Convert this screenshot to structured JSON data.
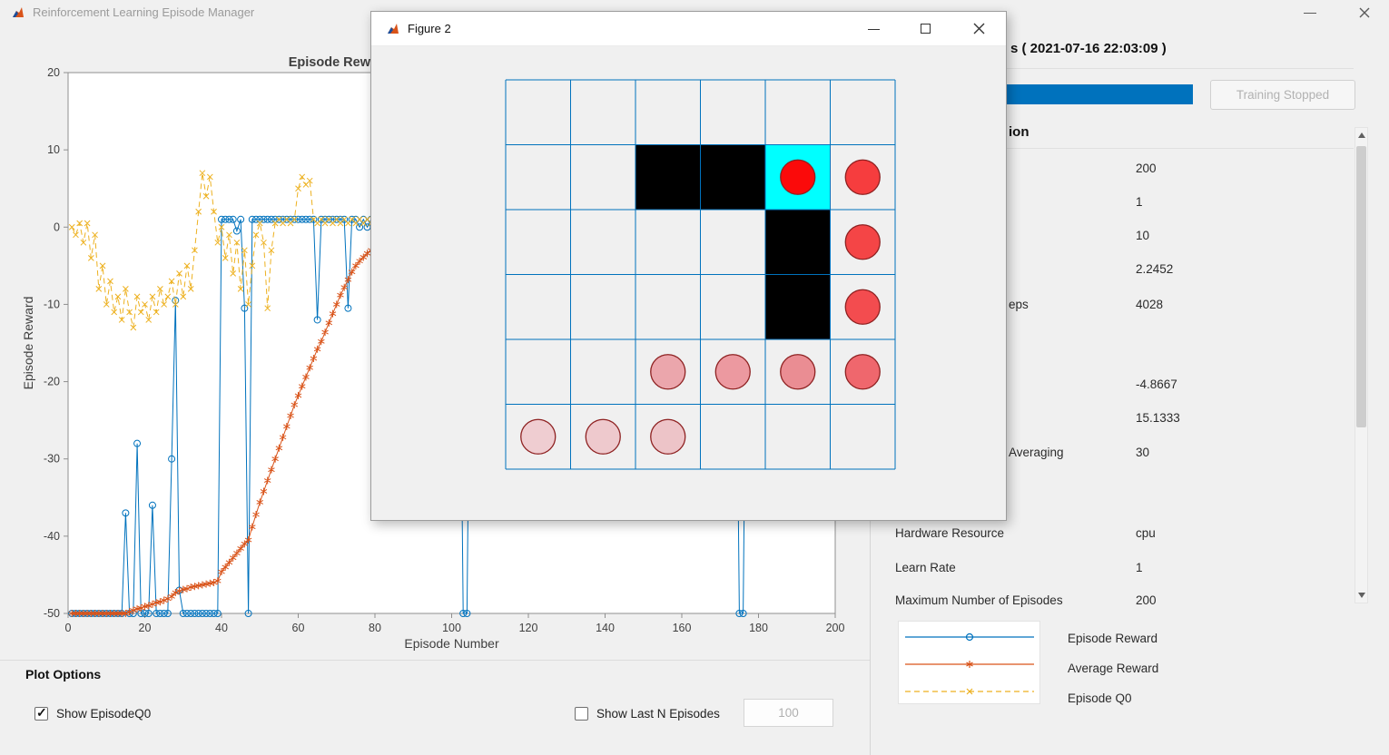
{
  "window": {
    "title": "Reinforcement Learning Episode Manager"
  },
  "plot": {
    "title_visible": "Episode Rew"
  },
  "chart_data": {
    "type": "line",
    "title": "Episode Rew",
    "xlabel": "Episode Number",
    "ylabel": "Episode Reward",
    "xlim": [
      0,
      200
    ],
    "ylim": [
      -50,
      20
    ],
    "xticks": [
      0,
      20,
      40,
      60,
      80,
      100,
      120,
      140,
      160,
      180,
      200
    ],
    "yticks": [
      -50,
      -40,
      -30,
      -20,
      -10,
      0,
      10,
      20
    ],
    "grid": false,
    "legend_position": "bottom-right-panel",
    "series": [
      {
        "name": "Episode Reward",
        "color": "#0072BD",
        "marker": "circle",
        "dash": "",
        "points": [
          [
            1,
            -50
          ],
          [
            2,
            -50
          ],
          [
            3,
            -50
          ],
          [
            4,
            -50
          ],
          [
            5,
            -50
          ],
          [
            6,
            -50
          ],
          [
            7,
            -50
          ],
          [
            8,
            -50
          ],
          [
            9,
            -50
          ],
          [
            10,
            -50
          ],
          [
            11,
            -50
          ],
          [
            12,
            -50
          ],
          [
            13,
            -50
          ],
          [
            14,
            -50
          ],
          [
            15,
            -37
          ],
          [
            16,
            -50
          ],
          [
            17,
            -50
          ],
          [
            18,
            -28
          ],
          [
            19,
            -50
          ],
          [
            20,
            -50
          ],
          [
            21,
            -50
          ],
          [
            22,
            -36
          ],
          [
            23,
            -50
          ],
          [
            24,
            -50
          ],
          [
            25,
            -50
          ],
          [
            26,
            -50
          ],
          [
            27,
            -30
          ],
          [
            28,
            -9.5
          ],
          [
            29,
            -47
          ],
          [
            30,
            -50
          ],
          [
            31,
            -50
          ],
          [
            32,
            -50
          ],
          [
            33,
            -50
          ],
          [
            34,
            -50
          ],
          [
            35,
            -50
          ],
          [
            36,
            -50
          ],
          [
            37,
            -50
          ],
          [
            38,
            -50
          ],
          [
            39,
            -50
          ],
          [
            40,
            1
          ],
          [
            41,
            1
          ],
          [
            42,
            1
          ],
          [
            43,
            1
          ],
          [
            44,
            -0.5
          ],
          [
            45,
            1
          ],
          [
            46,
            -10.5
          ],
          [
            47,
            -50
          ],
          [
            48,
            1
          ],
          [
            49,
            1
          ],
          [
            50,
            1
          ],
          [
            51,
            1
          ],
          [
            52,
            1
          ],
          [
            53,
            1
          ],
          [
            54,
            1
          ],
          [
            55,
            1
          ],
          [
            56,
            1
          ],
          [
            57,
            1
          ],
          [
            58,
            1
          ],
          [
            59,
            1
          ],
          [
            60,
            1
          ],
          [
            61,
            1
          ],
          [
            62,
            1
          ],
          [
            63,
            1
          ],
          [
            64,
            1
          ],
          [
            65,
            -12
          ],
          [
            66,
            1
          ],
          [
            67,
            1
          ],
          [
            68,
            1
          ],
          [
            69,
            1
          ],
          [
            70,
            1
          ],
          [
            71,
            1
          ],
          [
            72,
            1
          ],
          [
            73,
            -10.5
          ],
          [
            74,
            1
          ],
          [
            75,
            1
          ],
          [
            76,
            0
          ],
          [
            77,
            1
          ],
          [
            78,
            0
          ],
          [
            79,
            1
          ],
          [
            80,
            0
          ],
          [
            81,
            1
          ],
          [
            102,
            1
          ],
          [
            103,
            -50
          ],
          [
            104,
            -50
          ],
          [
            105,
            1
          ],
          [
            174,
            1
          ],
          [
            175,
            -50
          ],
          [
            176,
            -50
          ],
          [
            177,
            1
          ],
          [
            200,
            1
          ]
        ]
      },
      {
        "name": "Average Reward",
        "color": "#D95319",
        "marker": "asterisk",
        "dash": "",
        "points": [
          [
            1,
            -50
          ],
          [
            2,
            -50
          ],
          [
            3,
            -50
          ],
          [
            4,
            -50
          ],
          [
            5,
            -50
          ],
          [
            6,
            -50
          ],
          [
            7,
            -50
          ],
          [
            8,
            -50
          ],
          [
            9,
            -50
          ],
          [
            10,
            -50
          ],
          [
            11,
            -50
          ],
          [
            12,
            -50
          ],
          [
            13,
            -50
          ],
          [
            14,
            -50
          ],
          [
            15,
            -50
          ],
          [
            16,
            -49.8
          ],
          [
            17,
            -49.6
          ],
          [
            18,
            -49.4
          ],
          [
            19,
            -49.3
          ],
          [
            20,
            -49.1
          ],
          [
            21,
            -49
          ],
          [
            22,
            -48.8
          ],
          [
            23,
            -48.6
          ],
          [
            24,
            -48.5
          ],
          [
            25,
            -48.3
          ],
          [
            26,
            -48.1
          ],
          [
            27,
            -47.8
          ],
          [
            28,
            -47.3
          ],
          [
            29,
            -47.1
          ],
          [
            30,
            -46.9
          ],
          [
            31,
            -46.8
          ],
          [
            32,
            -46.6
          ],
          [
            33,
            -46.5
          ],
          [
            34,
            -46.4
          ],
          [
            35,
            -46.3
          ],
          [
            36,
            -46.2
          ],
          [
            37,
            -46.1
          ],
          [
            38,
            -46
          ],
          [
            39,
            -45.8
          ],
          [
            40,
            -44.6
          ],
          [
            41,
            -44
          ],
          [
            42,
            -43.4
          ],
          [
            43,
            -42.8
          ],
          [
            44,
            -42.2
          ],
          [
            45,
            -41.6
          ],
          [
            46,
            -41
          ],
          [
            47,
            -40.5
          ],
          [
            48,
            -38.8
          ],
          [
            49,
            -37.2
          ],
          [
            50,
            -35.6
          ],
          [
            51,
            -34.2
          ],
          [
            52,
            -32.8
          ],
          [
            53,
            -31.4
          ],
          [
            54,
            -30
          ],
          [
            55,
            -28.6
          ],
          [
            56,
            -27.2
          ],
          [
            57,
            -25.8
          ],
          [
            58,
            -24.4
          ],
          [
            59,
            -23
          ],
          [
            60,
            -21.8
          ],
          [
            61,
            -20.6
          ],
          [
            62,
            -19.4
          ],
          [
            63,
            -18.2
          ],
          [
            64,
            -17
          ],
          [
            65,
            -15.8
          ],
          [
            66,
            -14.8
          ],
          [
            67,
            -13.6
          ],
          [
            68,
            -12.4
          ],
          [
            69,
            -11.2
          ],
          [
            70,
            -10
          ],
          [
            71,
            -8.8
          ],
          [
            72,
            -7.8
          ],
          [
            73,
            -6.8
          ],
          [
            74,
            -5.8
          ],
          [
            75,
            -5
          ],
          [
            76,
            -4.4
          ],
          [
            77,
            -3.9
          ],
          [
            78,
            -3.4
          ],
          [
            79,
            -3
          ],
          [
            80,
            -2.6
          ]
        ]
      },
      {
        "name": "Episode Q0",
        "color": "#EDB120",
        "marker": "x",
        "dash": "6,4",
        "points": [
          [
            1,
            0
          ],
          [
            2,
            -1
          ],
          [
            3,
            0.5
          ],
          [
            4,
            -2
          ],
          [
            5,
            0.5
          ],
          [
            6,
            -4
          ],
          [
            7,
            -1
          ],
          [
            8,
            -8
          ],
          [
            9,
            -5
          ],
          [
            10,
            -10
          ],
          [
            11,
            -7
          ],
          [
            12,
            -11
          ],
          [
            13,
            -9
          ],
          [
            14,
            -12
          ],
          [
            15,
            -8
          ],
          [
            16,
            -11
          ],
          [
            17,
            -13
          ],
          [
            18,
            -9
          ],
          [
            19,
            -11
          ],
          [
            20,
            -10
          ],
          [
            21,
            -12
          ],
          [
            22,
            -9
          ],
          [
            23,
            -11
          ],
          [
            24,
            -8
          ],
          [
            25,
            -10
          ],
          [
            26,
            -9
          ],
          [
            27,
            -7
          ],
          [
            28,
            -10
          ],
          [
            29,
            -6
          ],
          [
            30,
            -9
          ],
          [
            31,
            -5
          ],
          [
            32,
            -8
          ],
          [
            33,
            -3
          ],
          [
            34,
            2
          ],
          [
            35,
            7
          ],
          [
            36,
            4
          ],
          [
            37,
            6.5
          ],
          [
            38,
            2
          ],
          [
            39,
            -2
          ],
          [
            40,
            0
          ],
          [
            41,
            -4
          ],
          [
            42,
            -1
          ],
          [
            43,
            -6
          ],
          [
            44,
            -2
          ],
          [
            45,
            -8
          ],
          [
            46,
            -3
          ],
          [
            47,
            -10
          ],
          [
            48,
            -5
          ],
          [
            49,
            -1
          ],
          [
            50,
            0.5
          ],
          [
            51,
            -2
          ],
          [
            52,
            -10.5
          ],
          [
            53,
            -3
          ],
          [
            54,
            0.5
          ],
          [
            55,
            1
          ],
          [
            56,
            0.5
          ],
          [
            57,
            1
          ],
          [
            58,
            0.5
          ],
          [
            59,
            1
          ],
          [
            60,
            5
          ],
          [
            61,
            6.5
          ],
          [
            62,
            5.5
          ],
          [
            63,
            6
          ],
          [
            64,
            1
          ],
          [
            65,
            0.5
          ],
          [
            66,
            1
          ],
          [
            67,
            0.5
          ],
          [
            68,
            1
          ],
          [
            69,
            0.5
          ],
          [
            70,
            1
          ],
          [
            71,
            0.5
          ],
          [
            72,
            1
          ],
          [
            73,
            0.5
          ],
          [
            74,
            1
          ],
          [
            75,
            0.5
          ],
          [
            76,
            1
          ],
          [
            77,
            0.5
          ],
          [
            78,
            1
          ],
          [
            79,
            0.5
          ],
          [
            80,
            1
          ]
        ]
      }
    ]
  },
  "plot_options": {
    "heading": "Plot Options",
    "show_q0_label": "Show EpisodeQ0",
    "show_q0_checked": true,
    "show_last_label": "Show Last N Episodes",
    "show_last_checked": false,
    "last_n_value": "100"
  },
  "right_panel": {
    "header_visible": "s ( 2021-07-16 22:03:09 )",
    "stop_button": "Training Stopped",
    "section_visible": "ion",
    "progress_color": "#0072BD",
    "rows": [
      {
        "label": "",
        "value": "200"
      },
      {
        "label": "",
        "value": "1"
      },
      {
        "label": "",
        "value": "10"
      },
      {
        "label": "",
        "value": "2.2452"
      },
      {
        "label": "eps",
        "value": "4028"
      },
      {
        "label": "",
        "value": "-4.8667"
      },
      {
        "label": "",
        "value": "15.1333"
      },
      {
        "label": "Averaging",
        "value": "30"
      },
      {
        "label": "Hardware Resource",
        "value": "cpu"
      },
      {
        "label": "Learn Rate",
        "value": "1"
      },
      {
        "label": "Maximum Number of Episodes",
        "value": "200"
      }
    ],
    "legend": [
      {
        "label": "Episode Reward",
        "color": "#0072BD",
        "marker": "circle",
        "dash": "solid"
      },
      {
        "label": "Average Reward",
        "color": "#D95319",
        "marker": "asterisk",
        "dash": "solid"
      },
      {
        "label": "Episode Q0",
        "color": "#EDB120",
        "marker": "x",
        "dash": "dashed"
      }
    ]
  },
  "figure_window": {
    "title": "Figure 2",
    "grid": {
      "rows": 6,
      "cols": 6,
      "line_color": "#0072BD",
      "cell_color": "#f0f0f0",
      "black_cells": [
        [
          1,
          2
        ],
        [
          1,
          3
        ],
        [
          2,
          4
        ],
        [
          3,
          4
        ]
      ],
      "cyan_cell": [
        1,
        4
      ],
      "cyan_color": "#00ffff",
      "circle_edge": "#8e2121",
      "circles": [
        {
          "row": 5,
          "col": 0,
          "color": "#efcdd1"
        },
        {
          "row": 5,
          "col": 1,
          "color": "#eec9cd"
        },
        {
          "row": 5,
          "col": 2,
          "color": "#edc4c8"
        },
        {
          "row": 4,
          "col": 2,
          "color": "#eba6ac"
        },
        {
          "row": 4,
          "col": 3,
          "color": "#ec99a0"
        },
        {
          "row": 4,
          "col": 4,
          "color": "#ea8d93"
        },
        {
          "row": 4,
          "col": 5,
          "color": "#ef676d"
        },
        {
          "row": 3,
          "col": 5,
          "color": "#f34c4f"
        },
        {
          "row": 2,
          "col": 5,
          "color": "#f44546"
        },
        {
          "row": 1,
          "col": 5,
          "color": "#f63d3e"
        },
        {
          "row": 1,
          "col": 4,
          "color": "#fb0a0a"
        }
      ]
    }
  }
}
